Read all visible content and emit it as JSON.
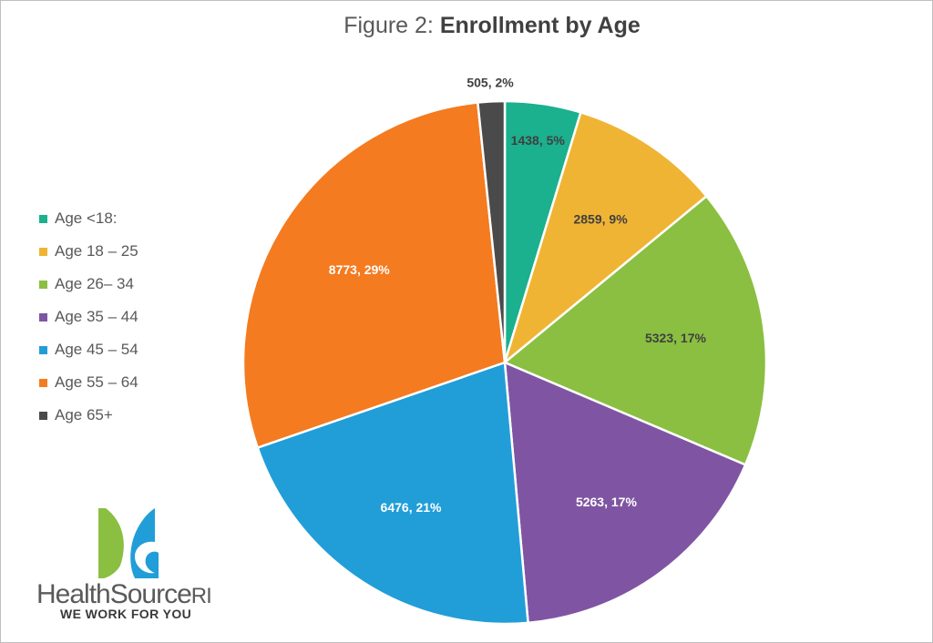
{
  "title": {
    "prefix": "Figure 2: ",
    "bold": "Enrollment by Age"
  },
  "chart_data": {
    "type": "pie",
    "title": "Figure 2: Enrollment by Age",
    "legend_position": "left",
    "slices": [
      {
        "label": "Age <18:",
        "value": 1438,
        "percent": "5%",
        "data_label": "1438, 5%",
        "color": "#1bb08e"
      },
      {
        "label": "Age 18 – 25",
        "value": 2859,
        "percent": "9%",
        "data_label": "2859, 9%",
        "color": "#f0b434"
      },
      {
        "label": "Age 26– 34",
        "value": 5323,
        "percent": "17%",
        "data_label": "5323, 17%",
        "color": "#8abf41"
      },
      {
        "label": "Age 35 – 44",
        "value": 5263,
        "percent": "17%",
        "data_label": "5263, 17%",
        "color": "#7f55a3"
      },
      {
        "label": "Age 45 – 54",
        "value": 6476,
        "percent": "21%",
        "data_label": "6476, 21%",
        "color": "#219ed8"
      },
      {
        "label": "Age 55 – 64",
        "value": 8773,
        "percent": "29%",
        "data_label": "8773, 29%",
        "color": "#f47b20"
      },
      {
        "label": "Age 65+",
        "value": 505,
        "percent": "2%",
        "data_label": "505, 2%",
        "color": "#4a4a4a"
      }
    ]
  },
  "logo": {
    "name_main": "HealthSource",
    "name_suffix": "RI",
    "tagline": "WE WORK FOR YOU",
    "colors": {
      "green": "#8abf41",
      "blue": "#219ed8"
    }
  }
}
